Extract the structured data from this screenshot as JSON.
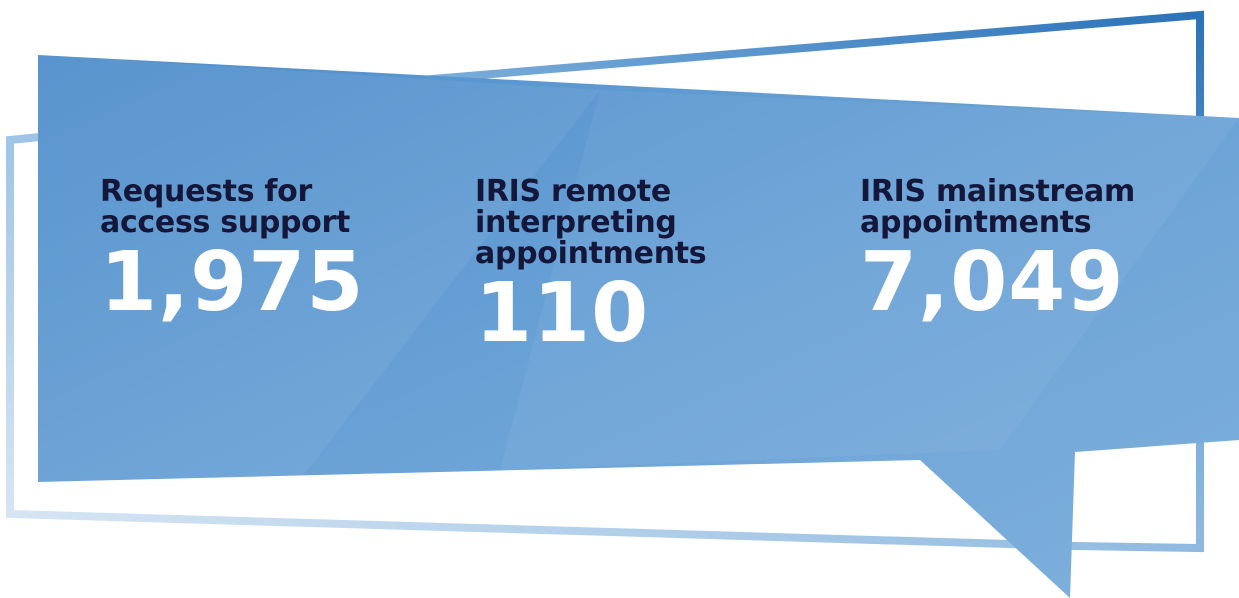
{
  "stats": [
    {
      "label": "Requests for access support",
      "value": "1,975"
    },
    {
      "label": "IRIS remote interpreting appointments",
      "value": "110"
    },
    {
      "label": "IRIS mainstream appointments",
      "value": "7,049"
    }
  ]
}
